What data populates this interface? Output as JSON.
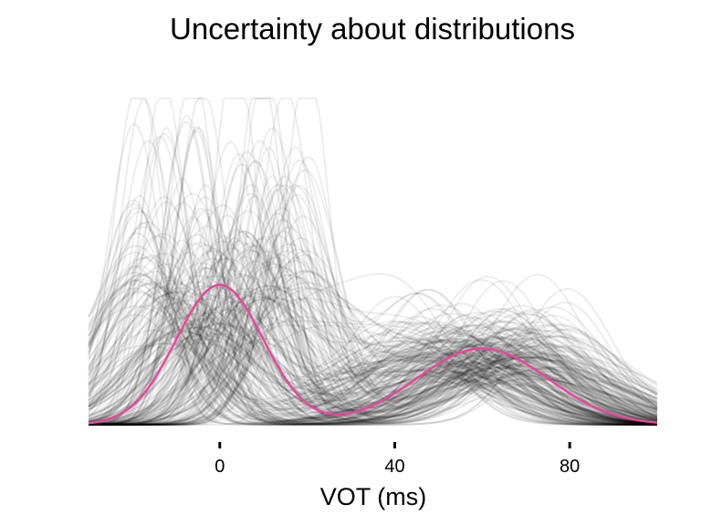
{
  "chart_data": {
    "type": "line",
    "title": "Uncertainty about distributions",
    "xlabel": "VOT (ms)",
    "ylabel": "",
    "xlim": [
      -30,
      100
    ],
    "ylim": [
      0,
      1
    ],
    "x_ticks": [
      0,
      40,
      80
    ],
    "x_tick_labels": [
      "0",
      "40",
      "80"
    ],
    "y_axis_shown": false,
    "grid": false,
    "legend": "none",
    "mean_curve": {
      "description": "bimodal mixture density",
      "components": [
        {
          "mean": 0,
          "sd": 10,
          "weight": 0.55
        },
        {
          "mean": 60,
          "sd": 15,
          "weight": 0.45
        }
      ]
    },
    "sample_curves": {
      "count": 250,
      "components_per_curve": 2,
      "first_component_mean_range": [
        -20,
        20
      ],
      "first_component_sd_range": [
        5,
        15
      ],
      "second_component_mean_range": [
        40,
        80
      ],
      "second_component_sd_range": [
        10,
        22
      ]
    }
  },
  "colors": {
    "sample_curve": "#000000",
    "sample_curve_opacity": 0.07,
    "mean_curve": "#e8479b",
    "background": "#ffffff"
  }
}
